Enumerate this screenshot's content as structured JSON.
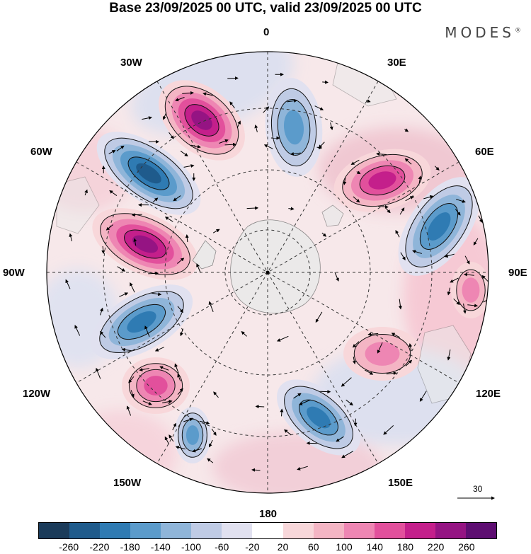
{
  "title": "Base 23/09/2025 00 UTC, valid 23/09/2025 00 UTC",
  "brand": "MODES",
  "brand_mark": "®",
  "longitude_labels": {
    "lon_0": "0",
    "lon_30e": "30E",
    "lon_60e": "60E",
    "lon_90e": "90E",
    "lon_120e": "120E",
    "lon_150e": "150E",
    "lon_180": "180",
    "lon_150w": "150W",
    "lon_120w": "120W",
    "lon_90w": "90W",
    "lon_60w": "60W",
    "lon_30w": "30W"
  },
  "reference_vector": "30",
  "colorbar": {
    "colors": [
      "#1b3b5a",
      "#1f5b8c",
      "#2f7bb3",
      "#5b9bcb",
      "#8fb5d9",
      "#bfcbe5",
      "#e1e1f0",
      "#ffffff",
      "#f8d7da",
      "#f4b5c4",
      "#ee86b3",
      "#e2509c",
      "#c41f8b",
      "#951483",
      "#5e0e72"
    ],
    "ticks": [
      "-260",
      "-220",
      "-180",
      "-140",
      "-100",
      "-60",
      "-20",
      "20",
      "60",
      "100",
      "140",
      "180",
      "220",
      "260"
    ]
  },
  "anomaly_centers": [
    {
      "sign": "negative",
      "value": -250
    },
    {
      "sign": "positive",
      "value": 230
    },
    {
      "sign": "negative",
      "value": -150
    },
    {
      "sign": "positive",
      "value": 180
    },
    {
      "sign": "negative",
      "value": -190
    },
    {
      "sign": "positive",
      "value": 250
    },
    {
      "sign": "negative",
      "value": -210
    },
    {
      "sign": "positive",
      "value": 170
    },
    {
      "sign": "negative",
      "value": -200
    },
    {
      "sign": "negative",
      "value": -170
    },
    {
      "sign": "positive",
      "value": 120
    },
    {
      "sign": "positive",
      "value": 110
    }
  ]
}
